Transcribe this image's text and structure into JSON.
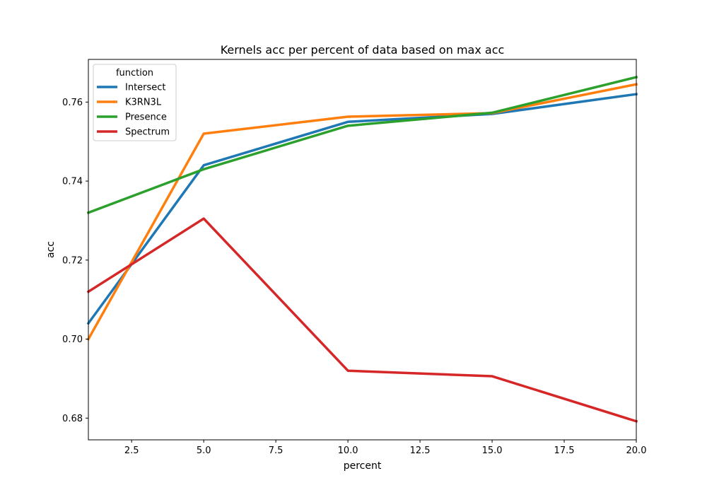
{
  "chart_data": {
    "type": "line",
    "title": "Kernels acc per percent of data based on max acc",
    "xlabel": "percent",
    "ylabel": "acc",
    "xlim": [
      1,
      20
    ],
    "ylim": [
      0.6745,
      0.7708
    ],
    "x_ticks": [
      2.5,
      5.0,
      7.5,
      10.0,
      12.5,
      15.0,
      17.5,
      20.0
    ],
    "x_tick_labels": [
      "2.5",
      "5.0",
      "7.5",
      "10.0",
      "12.5",
      "15.0",
      "17.5",
      "20.0"
    ],
    "y_ticks": [
      0.68,
      0.7,
      0.72,
      0.74,
      0.76
    ],
    "y_tick_labels": [
      "0.68",
      "0.70",
      "0.72",
      "0.74",
      "0.76"
    ],
    "grid": false,
    "legend": {
      "title": "function",
      "placement": "upper-left"
    },
    "x": [
      1,
      5,
      10,
      15,
      20
    ],
    "series": [
      {
        "name": "Intersect",
        "color": "#1f77b4",
        "values": [
          0.704,
          0.744,
          0.755,
          0.757,
          0.762
        ]
      },
      {
        "name": "K3RN3L",
        "color": "#ff7f0e",
        "values": [
          0.7,
          0.752,
          0.7563,
          0.7572,
          0.7645
        ]
      },
      {
        "name": "Presence",
        "color": "#2ca02c",
        "values": [
          0.732,
          0.743,
          0.754,
          0.7573,
          0.7663
        ]
      },
      {
        "name": "Spectrum",
        "color": "#d62728",
        "values": [
          0.712,
          0.7305,
          0.692,
          0.6906,
          0.6792
        ]
      }
    ]
  }
}
